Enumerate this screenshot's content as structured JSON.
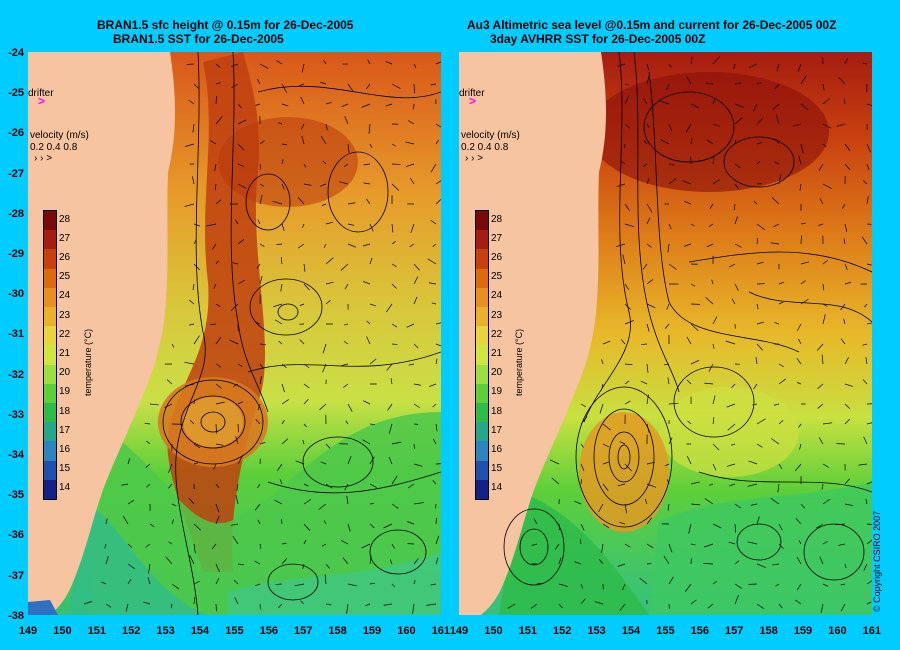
{
  "left_panel": {
    "title_line1": "BRAN1.5 sfc height @ 0.15m for 26-Dec-2005",
    "title_line2": "BRAN1.5 SST for 26-Dec-2005"
  },
  "right_panel": {
    "title_line1": "Au3 Altimetric sea level  @0.15m and current for 26-Dec-2005 00Z",
    "title_line2": "3day AVHRR SST for 26-Dec-2005 00Z"
  },
  "legend": {
    "drifter_label": "drifter",
    "velocity_label": "velocity (m/s)",
    "velocity_values": "0.2 0.4 0.8",
    "colorbar_title": "temperature (°C)",
    "colorbar_ticks": [
      "28",
      "27",
      "26",
      "25",
      "24",
      "23",
      "22",
      "21",
      "20",
      "19",
      "18",
      "17",
      "16",
      "15",
      "14"
    ],
    "colors": [
      "#7a0a0a",
      "#a51c10",
      "#c84010",
      "#dd6a10",
      "#e88f20",
      "#ecb12a",
      "#e9d43a",
      "#cfe640",
      "#99e040",
      "#5ccf3a",
      "#2ebb4a",
      "#25a78a",
      "#2a85c0",
      "#2050b0",
      "#15208a"
    ]
  },
  "axes": {
    "y_labels": [
      "-24",
      "-25",
      "-26",
      "-27",
      "-28",
      "-29",
      "-30",
      "-31",
      "-32",
      "-33",
      "-34",
      "-35",
      "-36",
      "-37",
      "-38"
    ],
    "x_labels_left": [
      "149",
      "150",
      "151",
      "152",
      "153",
      "154",
      "155",
      "156",
      "157",
      "158",
      "159",
      "160",
      "161"
    ],
    "x_labels_right": [
      "149",
      "150",
      "151",
      "152",
      "153",
      "154",
      "155",
      "156",
      "157",
      "158",
      "159",
      "160",
      "161"
    ]
  },
  "copyright": "© Copyright CSIRO 2007",
  "map_colors": {
    "land": "#f7c4a1",
    "background": "#00ccff"
  }
}
